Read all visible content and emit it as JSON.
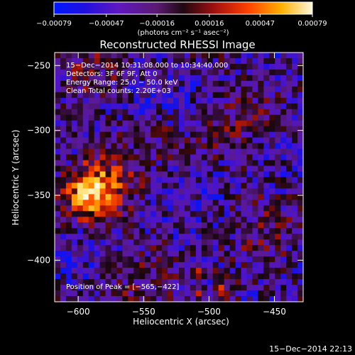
{
  "chart_data": {
    "type": "heatmap",
    "title": "Reconstructed RHESSI Image",
    "xlabel": "Heliocentric X (arcsec)",
    "ylabel": "Heliocentric Y (arcsec)",
    "xlim": [
      -618,
      -428
    ],
    "ylim": [
      -432,
      -240
    ],
    "x_ticks": [
      -600,
      -550,
      -500,
      -450
    ],
    "y_ticks": [
      -400,
      -350,
      -300,
      -250
    ],
    "x_tick_labels": [
      "−600",
      "−550",
      "−500",
      "−450"
    ],
    "y_tick_labels": [
      "−400",
      "−350",
      "−300",
      "−250"
    ],
    "colorbar": {
      "vmin": -0.00079,
      "vmax": 0.00079,
      "ticks": [
        -0.00079,
        -0.00047,
        -0.00016,
        0.00016,
        0.00047,
        0.00079
      ],
      "tick_labels": [
        "−0.00079",
        "−0.00047",
        "−0.00016",
        "0.00016",
        "0.00047",
        "0.00079"
      ],
      "unit_label": "(photons cm⁻² s⁻¹ asec⁻²)"
    },
    "annotations": [
      "15−Dec−2014 10:31:08.000 to 10:34:40.000",
      "Detectors: 3F 6F 9F, Att 0",
      "Energy Range: 25.0 − 50.0 keV",
      "Clean    Total counts: 2.20E+03"
    ],
    "peak_label": "Position of Peak = [−565,−422]",
    "peak_position": [
      -565,
      -422
    ],
    "grid": false
  },
  "footer_timestamp": "15−Dec−2014 22:13"
}
